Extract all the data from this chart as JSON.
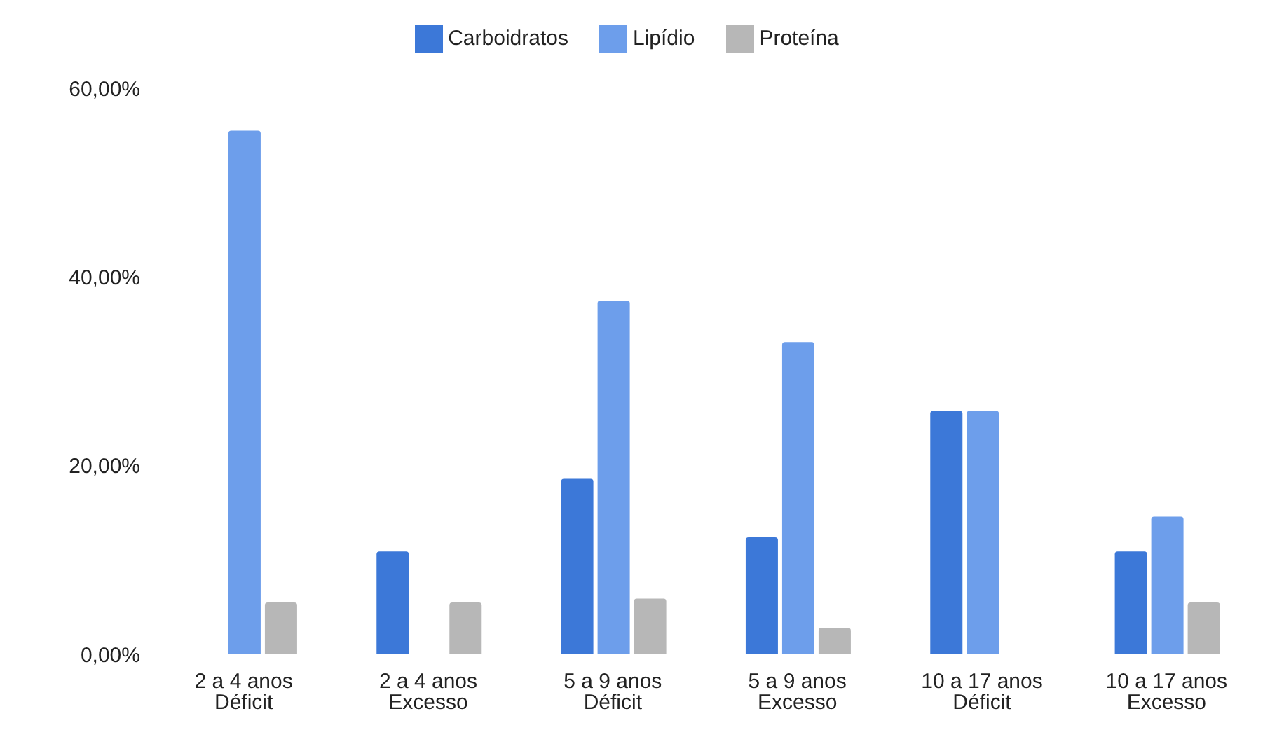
{
  "chart_data": {
    "type": "bar",
    "categories": [
      "2 a 4 anos\nDéficit",
      "2 a 4 anos\nExcesso",
      "5 a 9 anos\nDéficit",
      "5 a 9 anos\nExcesso",
      "10 a 17 anos\nDéficit",
      "10 a 17 anos\nExcesso"
    ],
    "series": [
      {
        "name": "Carboidratos",
        "color": "#3c78d8",
        "values": [
          null,
          10.9,
          18.6,
          12.4,
          25.8,
          10.9
        ]
      },
      {
        "name": "Lipídio",
        "color": "#6d9eeb",
        "values": [
          55.5,
          null,
          37.5,
          33.1,
          25.8,
          14.6
        ]
      },
      {
        "name": "Proteína",
        "color": "#b7b7b7",
        "values": [
          5.5,
          5.5,
          5.9,
          2.8,
          null,
          5.5
        ]
      }
    ],
    "ylim": [
      0,
      60
    ],
    "yticks": [
      {
        "value": 0,
        "label": "0,00%"
      },
      {
        "value": 20,
        "label": "20,00%"
      },
      {
        "value": 40,
        "label": "40,00%"
      },
      {
        "value": 60,
        "label": "60,00%"
      }
    ],
    "grid": false,
    "legend": "top"
  }
}
